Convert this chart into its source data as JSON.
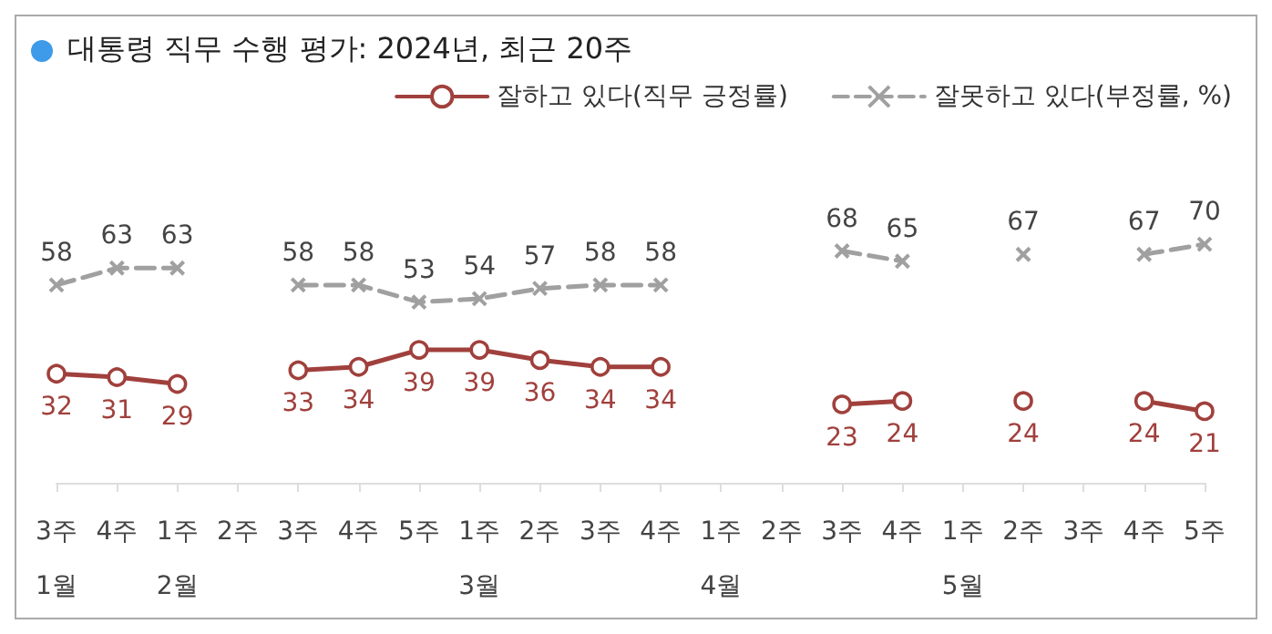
{
  "chart_data": {
    "type": "line",
    "title": "대통령 직무 수행 평가: 2024년, 최근 20주",
    "categories": [
      "3주\n1월",
      "4주",
      "1주\n2월",
      "2주",
      "3주",
      "4주",
      "5주",
      "1주\n3월",
      "2주",
      "3주",
      "4주",
      "1주\n4월",
      "2주",
      "3주",
      "4주",
      "1주\n5월",
      "2주",
      "3주",
      "4주",
      "5주"
    ],
    "series": [
      {
        "name": "잘하고 있다(직무 긍정률)",
        "color": "#a0403c",
        "marker": "circle",
        "line_style": "solid",
        "values": [
          32,
          31,
          29,
          null,
          33,
          34,
          39,
          39,
          36,
          34,
          34,
          null,
          null,
          23,
          24,
          null,
          24,
          null,
          24,
          21
        ]
      },
      {
        "name": "잘못하고 있다(부정률, %)",
        "color": "#a0a0a0",
        "marker": "cross",
        "line_style": "dashed",
        "values": [
          58,
          63,
          63,
          null,
          58,
          58,
          53,
          54,
          57,
          58,
          58,
          null,
          null,
          68,
          65,
          null,
          67,
          null,
          67,
          70
        ]
      }
    ],
    "data_labels": true,
    "legend": "top right",
    "grid": false
  }
}
